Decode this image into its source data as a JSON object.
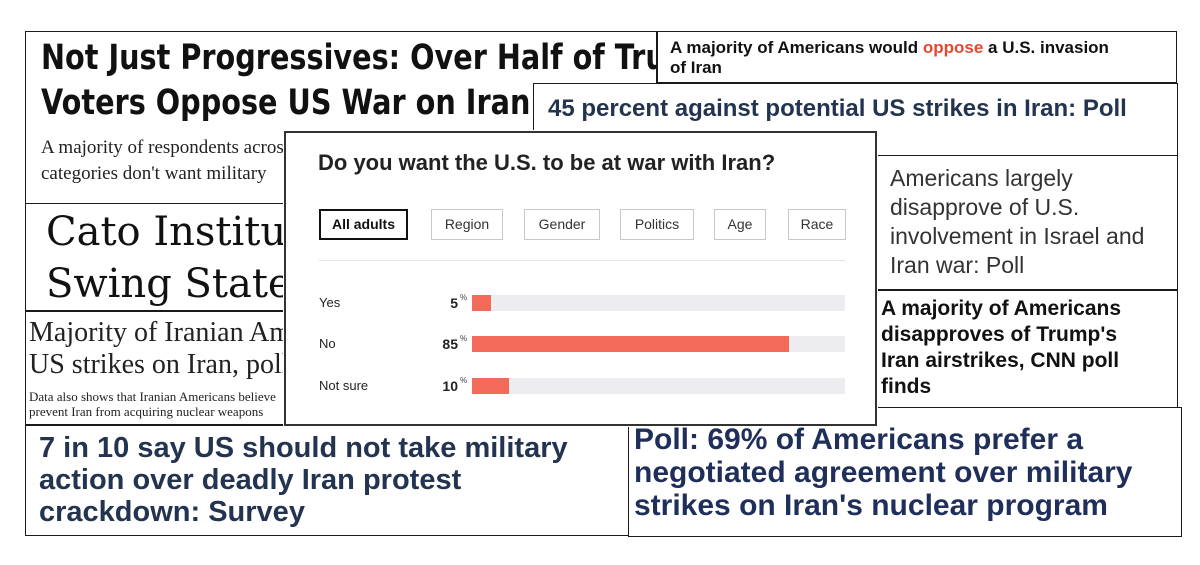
{
  "clips": {
    "c1": {
      "headline": [
        "Not Just Progressives: Over Half of Trump",
        "Voters Oppose US War on Iran"
      ],
      "sub": [
        "A majority of respondents across",
        "categories don't want military"
      ]
    },
    "c2": {
      "headline_before": "A majority of Americans would ",
      "headline_highlight": "oppose",
      "headline_after": " a U.S. invasion",
      "headline_line2": "of Iran",
      "highlight_color": "#e8472f"
    },
    "c3": {
      "headline": "45 percent against potential US strikes in Iran: Poll"
    },
    "c4": {
      "headline": [
        "Americans largely",
        "disapprove of U.S.",
        "involvement in Israel and",
        "Iran war: Poll"
      ]
    },
    "c5": {
      "headline": [
        "A majority of Americans",
        "disapproves of Trump's",
        "Iran airstrikes, CNN poll",
        "finds"
      ]
    },
    "c6": {
      "headline": [
        "Cato Institute",
        "Swing State"
      ]
    },
    "c7": {
      "headline": [
        "Majority of Iranian Americans",
        "US strikes on Iran, poll"
      ],
      "sub": [
        "Data also shows that Iranian Americans believe",
        "prevent Iran from acquiring nuclear weapons"
      ]
    },
    "c8": {
      "headline": [
        "7 in 10 say US should not take military",
        "action over deadly Iran protest",
        "crackdown: Survey"
      ]
    },
    "c9": {
      "headline": [
        "Poll: 69% of Americans prefer a",
        "negotiated agreement over military",
        "strikes on Iran's nuclear program"
      ]
    }
  },
  "poll": {
    "question": "Do you want the U.S. to be at war with Iran?",
    "tabs": [
      {
        "label": "All adults",
        "active": true
      },
      {
        "label": "Region",
        "active": false
      },
      {
        "label": "Gender",
        "active": false
      },
      {
        "label": "Politics",
        "active": false
      },
      {
        "label": "Age",
        "active": false
      },
      {
        "label": "Race",
        "active": false
      }
    ],
    "percent_symbol": "%",
    "bar_color": "#f36a5b",
    "track_color": "#ededf0"
  },
  "chart_data": {
    "type": "bar",
    "title": "Do you want the U.S. to be at war with Iran?",
    "categories": [
      "Yes",
      "No",
      "Not sure"
    ],
    "values": [
      5,
      85,
      10
    ],
    "display": [
      "5",
      "85",
      "10"
    ],
    "unit": "%",
    "xlim": [
      0,
      100
    ],
    "orientation": "horizontal"
  }
}
